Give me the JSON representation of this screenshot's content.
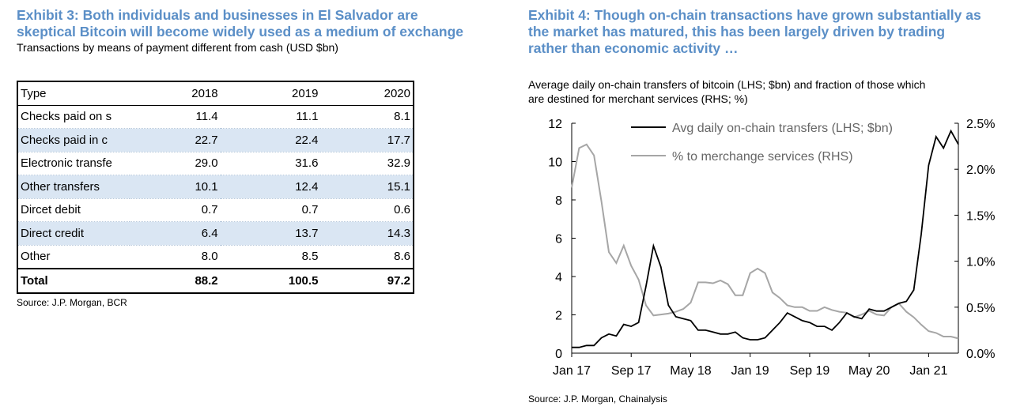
{
  "left": {
    "title_line1": "Exhibit 3: Both individuals and businesses in El Salvador are",
    "title_line2": "skeptical Bitcoin will become widely used as a medium of exchange",
    "subtitle": "Transactions by means of payment different from cash (USD $bn)",
    "source": "Source: J.P. Morgan, BCR",
    "table": {
      "headers": [
        "Type",
        "2018",
        "2019",
        "2020"
      ],
      "rows": [
        [
          "Checks paid on s",
          "11.4",
          "11.1",
          "8.1"
        ],
        [
          "Checks paid in c",
          "22.7",
          "22.4",
          "17.7"
        ],
        [
          "Electronic transfe",
          "29.0",
          "31.6",
          "32.9"
        ],
        [
          "Other transfers",
          "10.1",
          "12.4",
          "15.1"
        ],
        [
          "Dircet debit",
          "0.7",
          "0.7",
          "0.6"
        ],
        [
          "Direct credit",
          "6.4",
          "13.7",
          "14.3"
        ],
        [
          "Other",
          "8.0",
          "8.5",
          "8.6"
        ]
      ],
      "total": [
        "Total",
        "88.2",
        "100.5",
        "97.2"
      ]
    }
  },
  "right": {
    "title_line1": "Exhibit 4: Though on-chain transactions have grown substantially as",
    "title_line2": "the market has matured, this has been largely driven by trading",
    "title_line3": "rather than economic activity …",
    "subtitle_line1": "Average daily on-chain transfers of bitcoin (LHS; $bn) and fraction of those which",
    "subtitle_line2": "are destined for merchant services (RHS; %)",
    "source": "Source: J.P.  Morgan, Chainalysis"
  },
  "chart_data": {
    "type": "line",
    "x_range": [
      0,
      52
    ],
    "x_ticks": [
      {
        "x": 0,
        "label": "Jan 17"
      },
      {
        "x": 8,
        "label": "Sep 17"
      },
      {
        "x": 16,
        "label": "May 18"
      },
      {
        "x": 24,
        "label": "Jan 19"
      },
      {
        "x": 32,
        "label": "Sep 19"
      },
      {
        "x": 40,
        "label": "May 20"
      },
      {
        "x": 48,
        "label": "Jan 21"
      }
    ],
    "y_left": {
      "min": 0,
      "max": 12,
      "ticks": [
        "0",
        "2",
        "4",
        "6",
        "8",
        "10",
        "12"
      ]
    },
    "y_right": {
      "min": 0,
      "max": 2.5,
      "ticks": [
        "0.0%",
        "0.5%",
        "1.0%",
        "1.5%",
        "2.0%",
        "2.5%"
      ]
    },
    "series": [
      {
        "name": "Avg daily on-chain transfers (LHS; $bn)",
        "axis": "left",
        "color": "#000000",
        "x": [
          0,
          1,
          2,
          3,
          4,
          5,
          6,
          7,
          8,
          9,
          10,
          11,
          12,
          13,
          14,
          15,
          16,
          17,
          18,
          19,
          20,
          21,
          22,
          23,
          24,
          25,
          26,
          27,
          28,
          29,
          30,
          31,
          32,
          33,
          34,
          35,
          36,
          37,
          38,
          39,
          40,
          41,
          42,
          43,
          44,
          45,
          46,
          47,
          48,
          49,
          50,
          51,
          52
        ],
        "values": [
          0.3,
          0.3,
          0.4,
          0.4,
          0.8,
          1.0,
          0.9,
          1.5,
          1.4,
          1.6,
          3.5,
          5.6,
          4.5,
          2.5,
          1.9,
          1.8,
          1.7,
          1.2,
          1.2,
          1.1,
          1.0,
          1.0,
          1.1,
          0.8,
          0.7,
          0.7,
          0.8,
          1.2,
          1.6,
          2.1,
          1.9,
          1.7,
          1.6,
          1.4,
          1.4,
          1.2,
          1.6,
          2.1,
          1.9,
          1.8,
          2.3,
          2.2,
          2.2,
          2.4,
          2.6,
          2.7,
          3.3,
          6.2,
          9.8,
          11.3,
          10.7,
          11.6,
          10.9
        ]
      },
      {
        "name": "% to merchange services (RHS)",
        "axis": "right",
        "color": "#a6a6a6",
        "x": [
          0,
          1,
          2,
          3,
          4,
          5,
          6,
          7,
          8,
          9,
          10,
          11,
          12,
          13,
          14,
          15,
          16,
          17,
          18,
          19,
          20,
          21,
          22,
          23,
          24,
          25,
          26,
          27,
          28,
          29,
          30,
          31,
          32,
          33,
          34,
          35,
          36,
          37,
          38,
          39,
          40,
          41,
          42,
          43,
          44,
          45,
          46,
          47,
          48,
          49,
          50,
          51,
          52
        ],
        "values": [
          1.8,
          2.23,
          2.27,
          2.15,
          1.65,
          1.1,
          0.98,
          1.17,
          0.95,
          0.8,
          0.52,
          0.41,
          0.42,
          0.43,
          0.45,
          0.48,
          0.55,
          0.77,
          0.77,
          0.76,
          0.79,
          0.75,
          0.63,
          0.63,
          0.87,
          0.92,
          0.87,
          0.66,
          0.6,
          0.52,
          0.5,
          0.5,
          0.46,
          0.46,
          0.5,
          0.47,
          0.45,
          0.44,
          0.39,
          0.42,
          0.46,
          0.42,
          0.41,
          0.5,
          0.54,
          0.45,
          0.39,
          0.31,
          0.24,
          0.22,
          0.18,
          0.18,
          0.16
        ]
      }
    ]
  }
}
